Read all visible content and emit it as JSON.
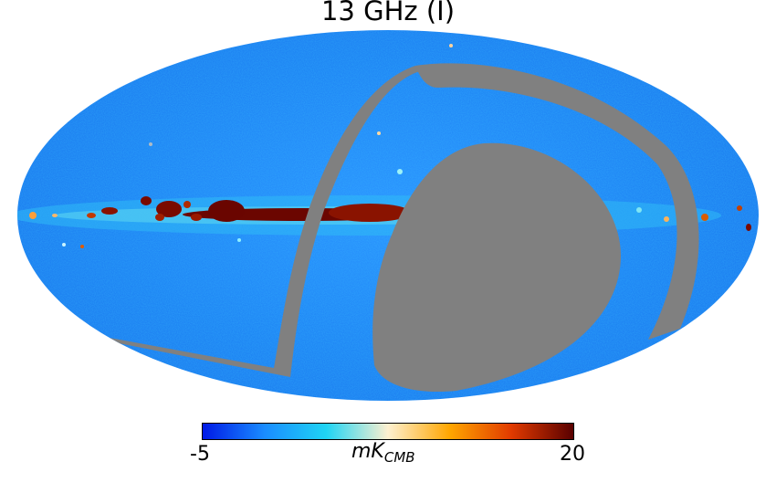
{
  "title": "13 GHz (I)",
  "colorbar": {
    "min_label": "-5",
    "max_label": "20",
    "unit_main": "mK",
    "unit_sub": "CMB",
    "colormap_stops": [
      "#0019e6",
      "#1a8cff",
      "#1fd4f4",
      "#fdf0d0",
      "#ffa600",
      "#e13a00",
      "#590000"
    ]
  },
  "colors": {
    "background_sky": "#1f88f5",
    "mask": "#808080",
    "galactic_plane": "#7a0a00"
  }
}
